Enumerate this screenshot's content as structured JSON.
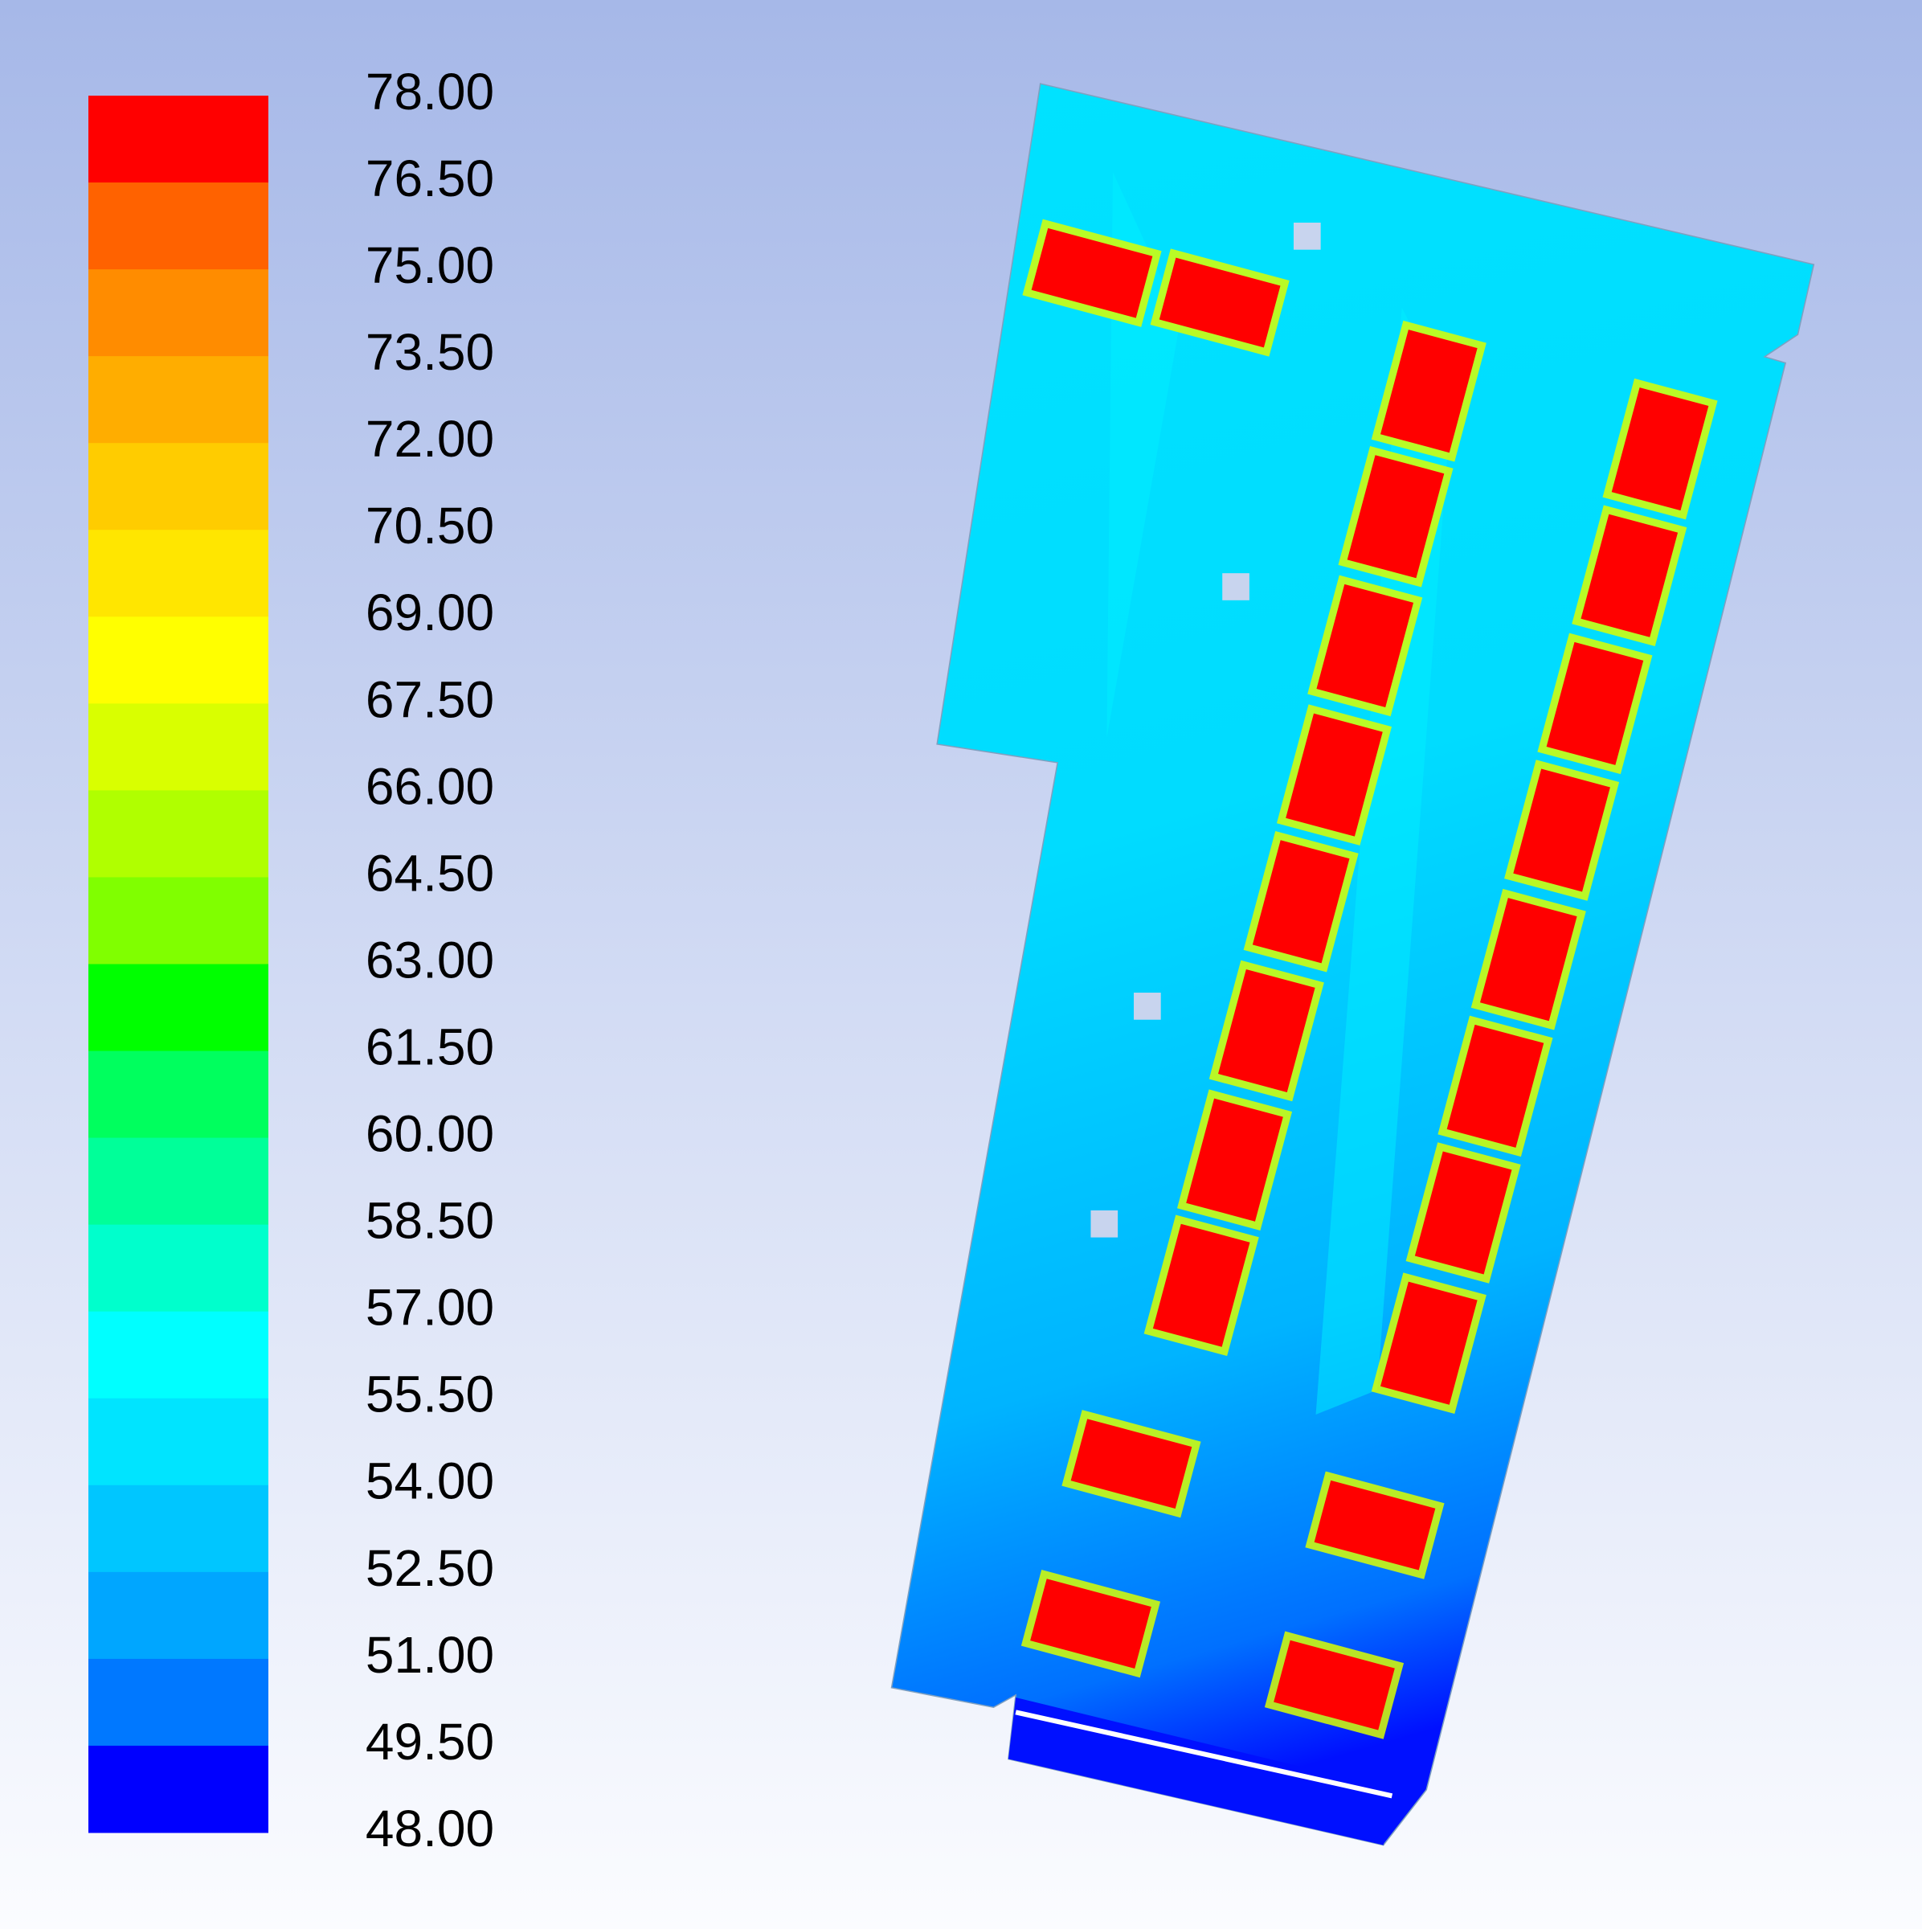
{
  "legend": {
    "labels": [
      "78.00",
      "76.50",
      "75.00",
      "73.50",
      "72.00",
      "70.50",
      "69.00",
      "67.50",
      "66.00",
      "64.50",
      "63.00",
      "61.50",
      "60.00",
      "58.50",
      "57.00",
      "55.50",
      "54.00",
      "52.50",
      "51.00",
      "49.50",
      "48.00"
    ],
    "colors": [
      "#ff0000",
      "#ff6200",
      "#ff8c00",
      "#ffad00",
      "#ffcc00",
      "#ffe600",
      "#ffff00",
      "#d9ff00",
      "#b0ff00",
      "#80ff00",
      "#00ff00",
      "#00ff5e",
      "#00ff99",
      "#00ffcc",
      "#00ffff",
      "#00e4ff",
      "#00c6ff",
      "#00a6ff",
      "#0078ff",
      "#0000ff"
    ]
  }
}
